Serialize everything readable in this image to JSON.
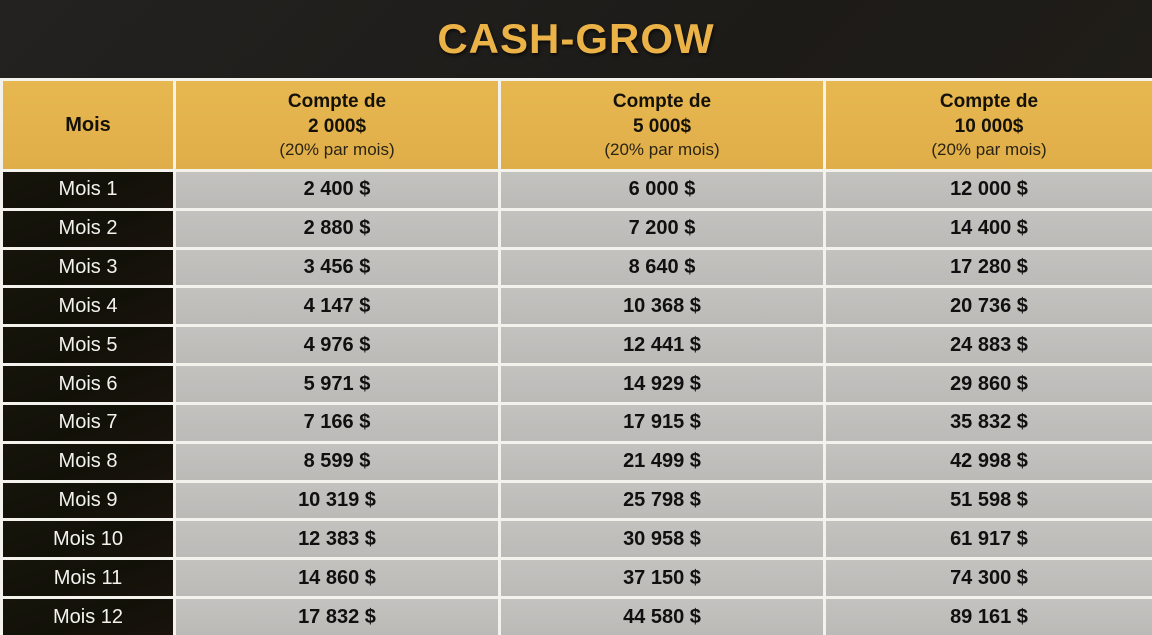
{
  "title": "CASH-GROW",
  "colors": {
    "title_gold": "#ebb247",
    "header_gold": "#e3b24d",
    "cell_gray": "#bfbebb",
    "label_dark": "#14120a",
    "divider_white": "#f4f2ed",
    "background_dark": "#201d19"
  },
  "table": {
    "header": {
      "month_label": "Mois",
      "columns": [
        {
          "line1": "Compte de",
          "line2": "2 000$",
          "line3": "(20% par mois)"
        },
        {
          "line1": "Compte de",
          "line2": "5 000$",
          "line3": "(20% par mois)"
        },
        {
          "line1": "Compte de",
          "line2": "10 000$",
          "line3": "(20% par mois)"
        }
      ]
    },
    "rows": [
      {
        "label": "Mois 1",
        "values": [
          "2 400 $",
          "6 000 $",
          "12 000 $"
        ]
      },
      {
        "label": "Mois 2",
        "values": [
          "2 880 $",
          "7 200 $",
          "14 400 $"
        ]
      },
      {
        "label": "Mois 3",
        "values": [
          "3 456 $",
          "8 640 $",
          "17 280 $"
        ]
      },
      {
        "label": "Mois 4",
        "values": [
          "4 147 $",
          "10 368 $",
          "20 736 $"
        ]
      },
      {
        "label": "Mois 5",
        "values": [
          "4 976 $",
          "12 441 $",
          "24 883 $"
        ]
      },
      {
        "label": "Mois 6",
        "values": [
          "5 971 $",
          "14 929 $",
          "29 860 $"
        ]
      },
      {
        "label": "Mois 7",
        "values": [
          "7 166 $",
          "17 915 $",
          "35 832 $"
        ]
      },
      {
        "label": "Mois 8",
        "values": [
          "8 599 $",
          "21 499 $",
          "42 998 $"
        ]
      },
      {
        "label": "Mois 9",
        "values": [
          "10 319 $",
          "25 798 $",
          "51 598 $"
        ]
      },
      {
        "label": "Mois 10",
        "values": [
          "12 383 $",
          "30 958 $",
          "61 917 $"
        ]
      },
      {
        "label": "Mois 11",
        "values": [
          "14 860 $",
          "37 150 $",
          "74 300 $"
        ]
      },
      {
        "label": "Mois 12",
        "values": [
          "17 832 $",
          "44 580 $",
          "89 161 $"
        ]
      }
    ]
  },
  "chart_data": {
    "type": "table",
    "title": "CASH-GROW",
    "categories": [
      "Mois 1",
      "Mois 2",
      "Mois 3",
      "Mois 4",
      "Mois 5",
      "Mois 6",
      "Mois 7",
      "Mois 8",
      "Mois 9",
      "Mois 10",
      "Mois 11",
      "Mois 12"
    ],
    "series": [
      {
        "name": "Compte de 2 000$ (20% par mois)",
        "values": [
          2400,
          2880,
          3456,
          4147,
          4976,
          5971,
          7166,
          8599,
          10319,
          12383,
          14860,
          17832
        ]
      },
      {
        "name": "Compte de 5 000$ (20% par mois)",
        "values": [
          6000,
          7200,
          8640,
          10368,
          12441,
          14929,
          17915,
          21499,
          25798,
          30958,
          37150,
          44580
        ]
      },
      {
        "name": "Compte de 10 000$ (20% par mois)",
        "values": [
          12000,
          14400,
          17280,
          20736,
          24883,
          29860,
          35832,
          42998,
          51598,
          61917,
          74300,
          89161
        ]
      }
    ]
  }
}
